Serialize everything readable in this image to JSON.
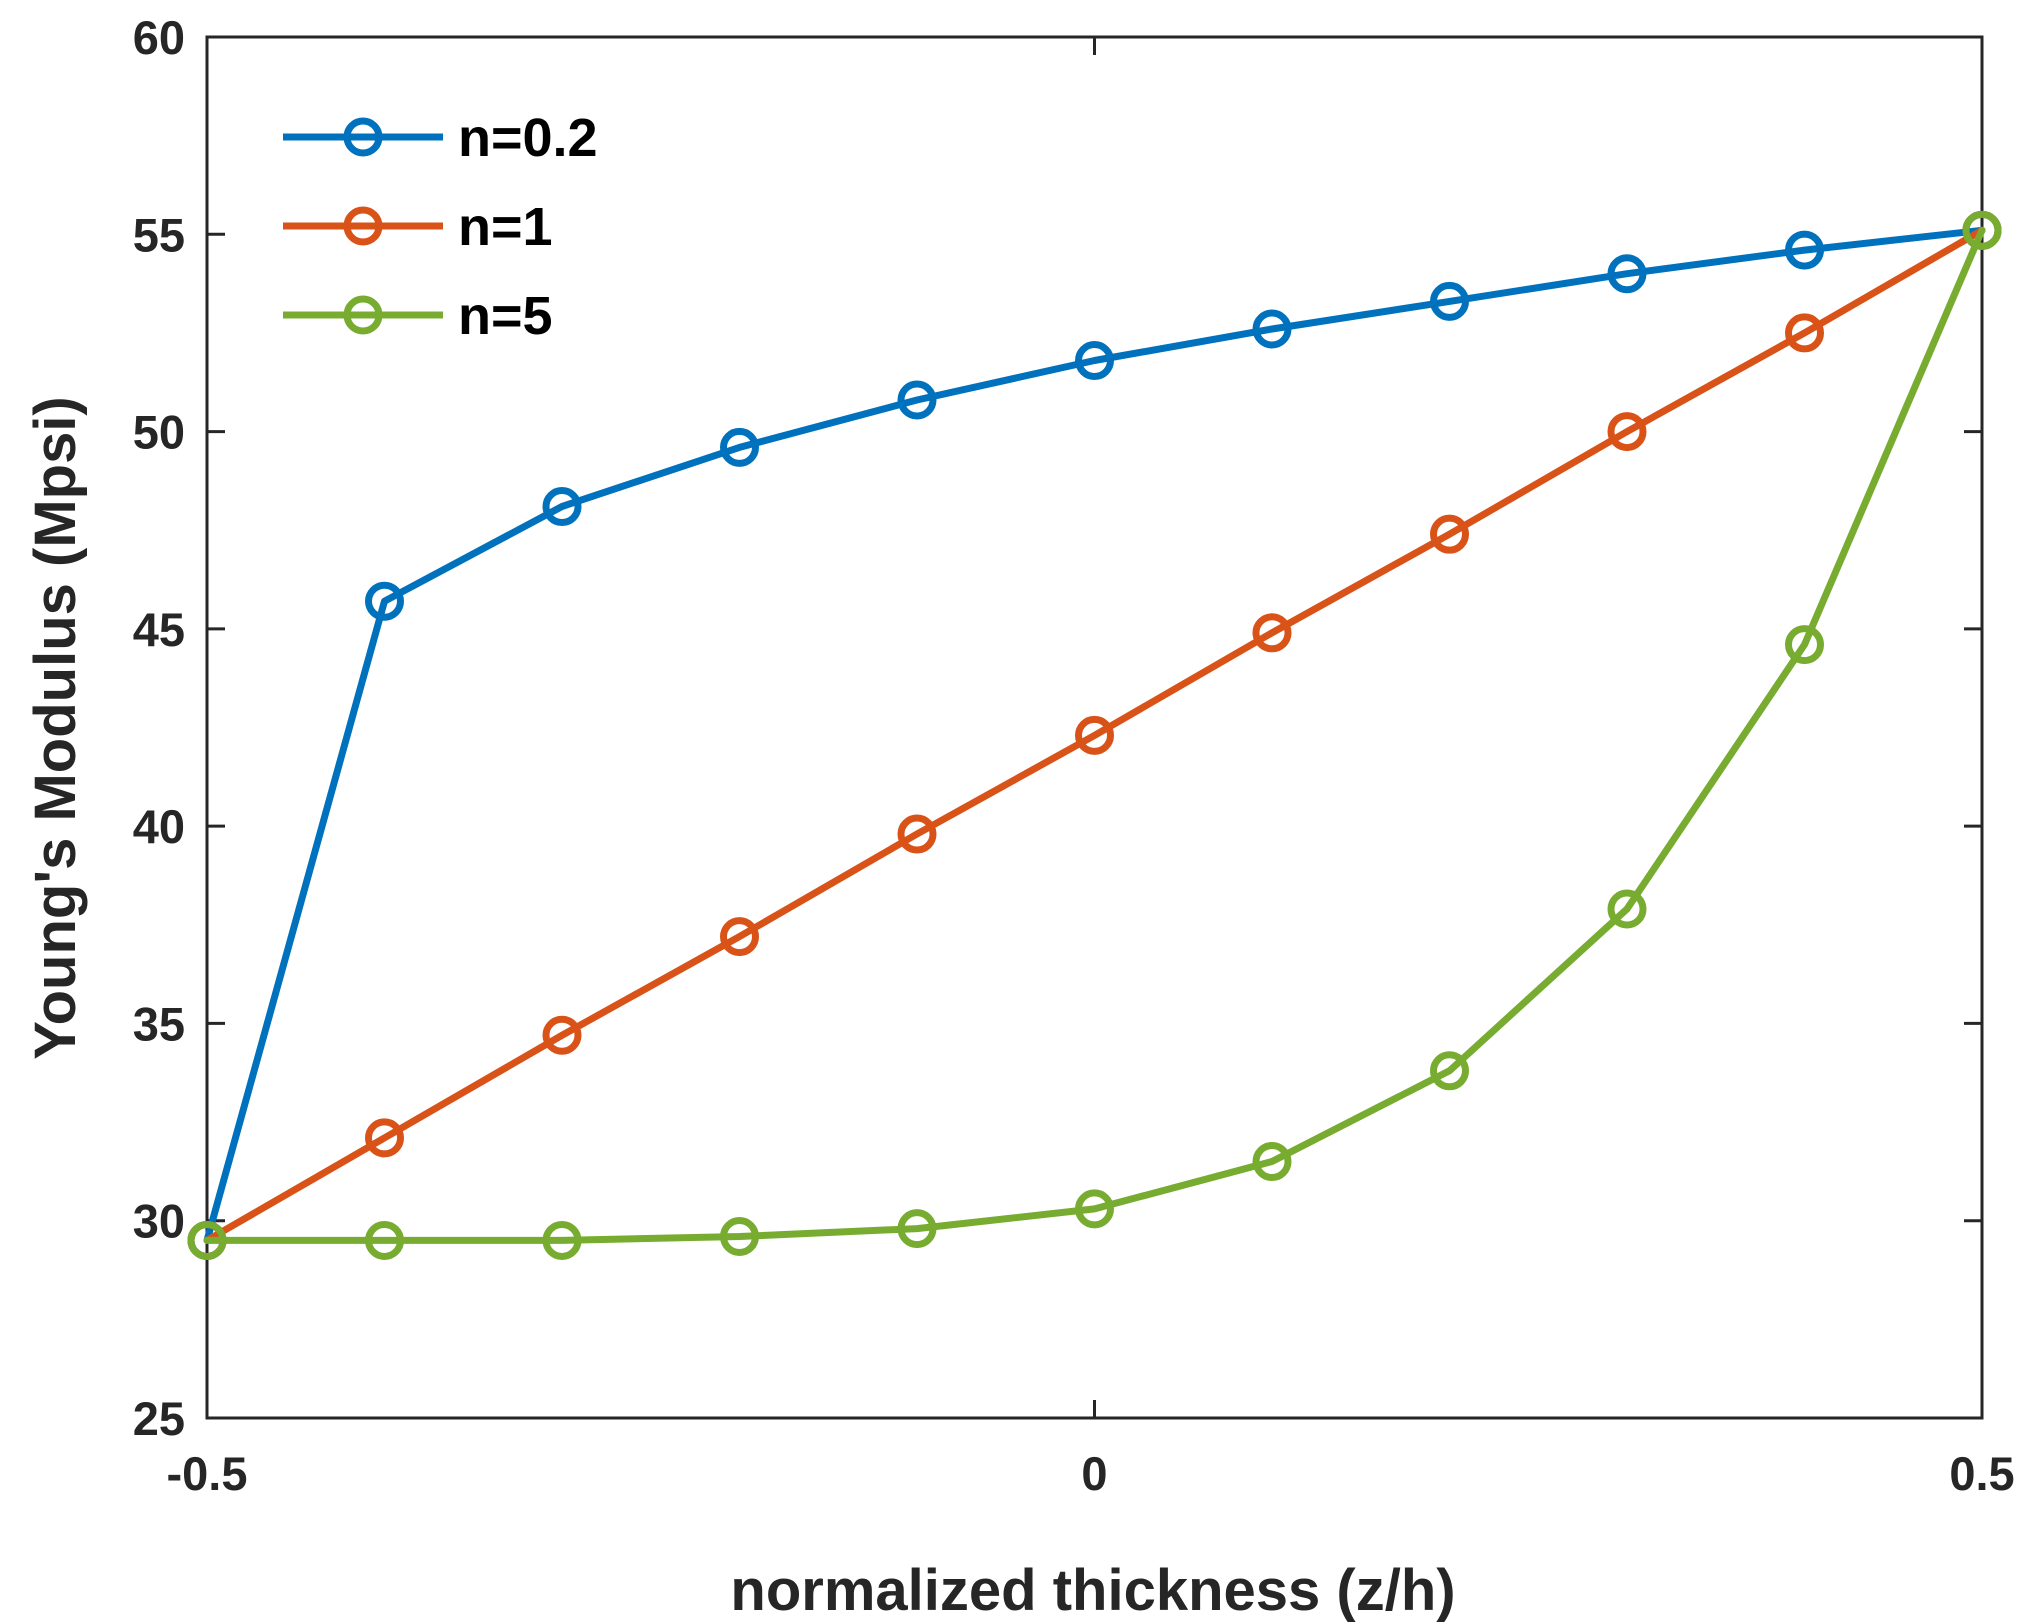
{
  "chart_data": {
    "type": "line",
    "title": "",
    "xlabel": "normalized thickness (z/h)",
    "ylabel": "Young's Modulus (Mpsi)",
    "xlim": [
      -0.5,
      0.5
    ],
    "ylim": [
      25,
      60
    ],
    "xticks": [
      -0.5,
      0,
      0.5
    ],
    "xtick_labels": [
      "-0.5",
      "0",
      "0.5"
    ],
    "yticks": [
      25,
      30,
      35,
      40,
      45,
      50,
      55,
      60
    ],
    "ytick_labels": [
      "25",
      "30",
      "35",
      "40",
      "45",
      "50",
      "55",
      "60"
    ],
    "grid": false,
    "legend_position": "top-left",
    "x": [
      -0.5,
      -0.4,
      -0.3,
      -0.2,
      -0.1,
      0,
      0.1,
      0.2,
      0.3,
      0.4,
      0.5
    ],
    "series": [
      {
        "name": "n=0.2",
        "color": "#0072BD",
        "values": [
          29.5,
          45.7,
          48.1,
          49.6,
          50.8,
          51.8,
          52.6,
          53.3,
          54.0,
          54.6,
          55.1
        ]
      },
      {
        "name": "n=1",
        "color": "#D95319",
        "values": [
          29.5,
          32.1,
          34.7,
          37.2,
          39.8,
          42.3,
          44.9,
          47.4,
          50.0,
          52.5,
          55.1
        ]
      },
      {
        "name": "n=5",
        "color": "#77AC30",
        "values": [
          29.5,
          29.5,
          29.5,
          29.6,
          29.8,
          30.3,
          31.5,
          33.8,
          37.9,
          44.6,
          55.1
        ]
      }
    ]
  }
}
